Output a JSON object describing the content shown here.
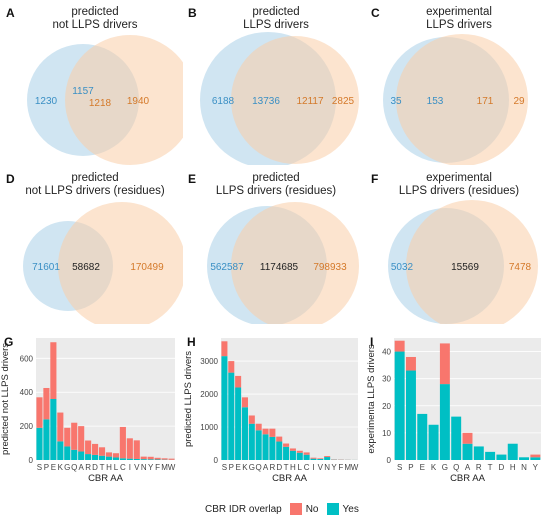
{
  "colors": {
    "circle_a": "#a9cfe8",
    "circle_b": "#f9cda8",
    "text_a": "#3a8fc4",
    "text_b": "#d4792a",
    "text_mid": "#222222",
    "bar_yes": "#00bfc4",
    "bar_no": "#f8766d",
    "grid_bg": "#ebebeb"
  },
  "venn": [
    {
      "letter": "A",
      "title": "predicted\nnot LLPS drivers",
      "only_a": "1230",
      "intersect": "1157",
      "intersect_b": "1218",
      "only_b": "1940"
    },
    {
      "letter": "B",
      "title": "predicted\nLLPS drivers",
      "only_a": "6188",
      "intersect": "13736",
      "intersect_b": "12117",
      "only_b": "2825"
    },
    {
      "letter": "C",
      "title": "experimental\nLLPS drivers",
      "only_a": "35",
      "intersect": "153",
      "intersect_b": "171",
      "only_b": "29"
    },
    {
      "letter": "D",
      "title": "predicted\nnot LLPS drivers (residues)",
      "only_a": "71601",
      "intersect": "58682",
      "only_b": "170499"
    },
    {
      "letter": "E",
      "title": "predicted\nLLPS drivers (residues)",
      "only_a": "562587",
      "intersect": "1174685",
      "only_b": "798933"
    },
    {
      "letter": "F",
      "title": "experimental\nLLPS drivers (residues)",
      "only_a": "5032",
      "intersect": "15569",
      "only_b": "7478"
    }
  ],
  "chart_data": [
    {
      "letter": "G",
      "type": "bar",
      "xlabel": "CBR AA",
      "ylabel": "predicted not LLPS drivers",
      "categories": [
        "S",
        "P",
        "E",
        "K",
        "G",
        "Q",
        "A",
        "R",
        "D",
        "T",
        "H",
        "L",
        "C",
        "I",
        "V",
        "N",
        "Y",
        "F",
        "M",
        "W"
      ],
      "ylim": [
        0,
        720
      ],
      "yticks": [
        0,
        200,
        400,
        600
      ],
      "series": [
        {
          "name": "Yes",
          "values": [
            190,
            240,
            360,
            110,
            80,
            60,
            50,
            35,
            30,
            25,
            20,
            15,
            10,
            8,
            6,
            5,
            4,
            3,
            2,
            1
          ]
        },
        {
          "name": "No",
          "values": [
            180,
            185,
            335,
            170,
            110,
            160,
            150,
            80,
            65,
            50,
            25,
            25,
            185,
            120,
            110,
            15,
            15,
            10,
            8,
            7
          ]
        }
      ]
    },
    {
      "letter": "H",
      "type": "bar",
      "xlabel": "CBR AA",
      "ylabel": "predicted LLPS drivers",
      "categories": [
        "S",
        "P",
        "E",
        "K",
        "G",
        "Q",
        "A",
        "R",
        "D",
        "T",
        "H",
        "L",
        "C",
        "I",
        "V",
        "N",
        "Y",
        "F",
        "M",
        "W"
      ],
      "ylim": [
        0,
        3700
      ],
      "yticks": [
        0,
        1000,
        2000,
        3000
      ],
      "series": [
        {
          "name": "Yes",
          "values": [
            3150,
            2650,
            2200,
            1600,
            1100,
            900,
            780,
            700,
            560,
            400,
            280,
            220,
            160,
            40,
            30,
            90,
            10,
            8,
            5,
            3
          ]
        },
        {
          "name": "No",
          "values": [
            450,
            350,
            350,
            300,
            250,
            200,
            170,
            250,
            150,
            100,
            70,
            60,
            70,
            30,
            20,
            30,
            10,
            8,
            5,
            3
          ]
        }
      ]
    },
    {
      "letter": "I",
      "type": "bar",
      "xlabel": "CBR AA",
      "ylabel": "experimenta LLPS drivers",
      "categories": [
        "S",
        "P",
        "E",
        "K",
        "G",
        "Q",
        "A",
        "R",
        "T",
        "D",
        "H",
        "N",
        "Y"
      ],
      "ylim": [
        0,
        45
      ],
      "yticks": [
        0,
        10,
        20,
        30,
        40
      ],
      "series": [
        {
          "name": "Yes",
          "values": [
            40,
            33,
            17,
            13,
            28,
            16,
            6,
            5,
            3,
            2,
            6,
            1,
            1
          ]
        },
        {
          "name": "No",
          "values": [
            4,
            5,
            0,
            0,
            15,
            0,
            4,
            0,
            0,
            0,
            0,
            0,
            1
          ]
        }
      ]
    }
  ],
  "legend": {
    "title": "CBR IDR overlap",
    "no_label": "No",
    "yes_label": "Yes"
  }
}
